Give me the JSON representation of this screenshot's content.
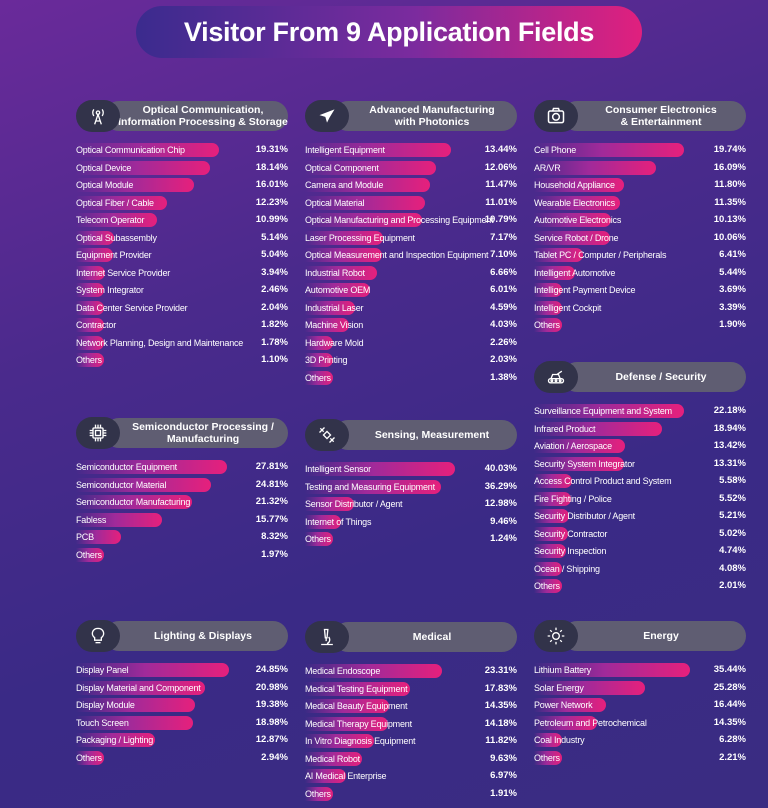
{
  "chart_data": {
    "type": "bar",
    "title": "Visitor From 9 Application Fields",
    "panels": [
      {
        "name": "Optical Communication,\nInformation Processing & Storage",
        "icon": "tower-icon",
        "items": [
          {
            "label": "Optical Communication Chip",
            "value": 19.31
          },
          {
            "label": "Optical Device",
            "value": 18.14
          },
          {
            "label": "Optical Module",
            "value": 16.01
          },
          {
            "label": "Optical Fiber / Cable",
            "value": 12.23
          },
          {
            "label": "Telecom Operator",
            "value": 10.99
          },
          {
            "label": "Optical Subassembly",
            "value": 5.14
          },
          {
            "label": "Equipment Provider",
            "value": 5.04
          },
          {
            "label": "Internet Service Provider",
            "value": 3.94
          },
          {
            "label": "System Integrator",
            "value": 2.46
          },
          {
            "label": "Data Center Service Provider",
            "value": 2.04
          },
          {
            "label": "Contractor",
            "value": 1.82
          },
          {
            "label": "Network Planning, Design and Maintenance",
            "value": 1.78
          },
          {
            "label": "Others",
            "value": 1.1
          }
        ]
      },
      {
        "name": "Advanced Manufacturing\nwith Photonics",
        "icon": "airplane-icon",
        "items": [
          {
            "label": "Intelligent Equipment",
            "value": 13.44
          },
          {
            "label": "Optical Component",
            "value": 12.06
          },
          {
            "label": "Camera and Module",
            "value": 11.47
          },
          {
            "label": "Optical Material",
            "value": 11.01
          },
          {
            "label": "Optical Manufacturing and Processing Equipment",
            "value": 10.79
          },
          {
            "label": "Laser Processing Equipment",
            "value": 7.17
          },
          {
            "label": "Optical Measurement and Inspection Equipment",
            "value": 7.1
          },
          {
            "label": "Industrial Robot",
            "value": 6.66
          },
          {
            "label": "Automotive OEM",
            "value": 6.01
          },
          {
            "label": "Industrial Laser",
            "value": 4.59
          },
          {
            "label": "Machine Vision",
            "value": 4.03
          },
          {
            "label": "Hardware Mold",
            "value": 2.26
          },
          {
            "label": "3D Printing",
            "value": 2.03
          },
          {
            "label": "Others",
            "value": 1.38
          }
        ]
      },
      {
        "name": "Consumer Electronics\n& Entertainment",
        "icon": "camera-icon",
        "items": [
          {
            "label": "Cell Phone",
            "value": 19.74
          },
          {
            "label": "AR/VR",
            "value": 16.09
          },
          {
            "label": "Household Appliance",
            "value": 11.8
          },
          {
            "label": "Wearable Electronics",
            "value": 11.35
          },
          {
            "label": "Automotive Electronics",
            "value": 10.13
          },
          {
            "label": "Service Robot / Drone",
            "value": 10.06
          },
          {
            "label": "Tablet PC / Computer / Peripherals",
            "value": 6.41
          },
          {
            "label": "Intelligent Automotive",
            "value": 5.44
          },
          {
            "label": "Intelligent Payment Device",
            "value": 3.69
          },
          {
            "label": "Intelligent Cockpit",
            "value": 3.39
          },
          {
            "label": "Others",
            "value": 1.9
          }
        ]
      },
      {
        "name": "Defense / Security",
        "icon": "tank-icon",
        "items": [
          {
            "label": "Surveillance Equipment and System",
            "value": 22.18
          },
          {
            "label": "Infrared Product",
            "value": 18.94
          },
          {
            "label": "Aviation / Aerospace",
            "value": 13.42
          },
          {
            "label": "Security System Integrator",
            "value": 13.31
          },
          {
            "label": "Access Control Product and System",
            "value": 5.58
          },
          {
            "label": "Fire Fighting / Police",
            "value": 5.52
          },
          {
            "label": "Security Distributor / Agent",
            "value": 5.21
          },
          {
            "label": "Security Contractor",
            "value": 5.02
          },
          {
            "label": "Security Inspection",
            "value": 4.74
          },
          {
            "label": "Ocean / Shipping",
            "value": 4.08
          },
          {
            "label": "Others",
            "value": 2.01
          }
        ]
      },
      {
        "name": "Semiconductor Processing /\nManufacturing",
        "icon": "chip-icon",
        "items": [
          {
            "label": "Semiconductor Equipment",
            "value": 27.81
          },
          {
            "label": "Semiconductor Material",
            "value": 24.81
          },
          {
            "label": "Semiconductor Manufacturing",
            "value": 21.32
          },
          {
            "label": "Fabless",
            "value": 15.77
          },
          {
            "label": "PCB",
            "value": 8.32
          },
          {
            "label": "Others",
            "value": 1.97
          }
        ]
      },
      {
        "name": "Sensing, Measurement",
        "icon": "satellite-icon",
        "items": [
          {
            "label": "Intelligent Sensor",
            "value": 40.03
          },
          {
            "label": "Testing and Measuring Equipment",
            "value": 36.29
          },
          {
            "label": "Sensor Distributor / Agent",
            "value": 12.98
          },
          {
            "label": "Internet of Things",
            "value": 9.46
          },
          {
            "label": "Others",
            "value": 1.24
          }
        ]
      },
      {
        "name": "Lighting & Displays",
        "icon": "bulb-icon",
        "items": [
          {
            "label": "Display Panel",
            "value": 24.85
          },
          {
            "label": "Display Material and Component",
            "value": 20.98
          },
          {
            "label": "Display Module",
            "value": 19.38
          },
          {
            "label": "Touch Screen",
            "value": 18.98
          },
          {
            "label": "Packaging / Lighting",
            "value": 12.87
          },
          {
            "label": "Others",
            "value": 2.94
          }
        ]
      },
      {
        "name": "Medical",
        "icon": "microscope-icon",
        "items": [
          {
            "label": "Medical Endoscope",
            "value": 23.31
          },
          {
            "label": "Medical Testing Equipment",
            "value": 17.83
          },
          {
            "label": "Medical Beauty Equipment",
            "value": 14.35
          },
          {
            "label": "Medical Therapy Equipment",
            "value": 14.18
          },
          {
            "label": "In Vitro Diagnosis Equipment",
            "value": 11.82
          },
          {
            "label": "Medical Robot",
            "value": 9.63
          },
          {
            "label": "AI Medical Enterprise",
            "value": 6.97
          },
          {
            "label": "Others",
            "value": 1.91
          }
        ]
      },
      {
        "name": "Energy",
        "icon": "sun-icon",
        "items": [
          {
            "label": "Lithium Battery",
            "value": 35.44
          },
          {
            "label": "Solar Energy",
            "value": 25.28
          },
          {
            "label": "Power Network",
            "value": 16.44
          },
          {
            "label": "Petroleum and Petrochemical",
            "value": 14.35
          },
          {
            "label": "Coal Industry",
            "value": 6.28
          },
          {
            "label": "Others",
            "value": 2.21
          }
        ]
      }
    ]
  }
}
